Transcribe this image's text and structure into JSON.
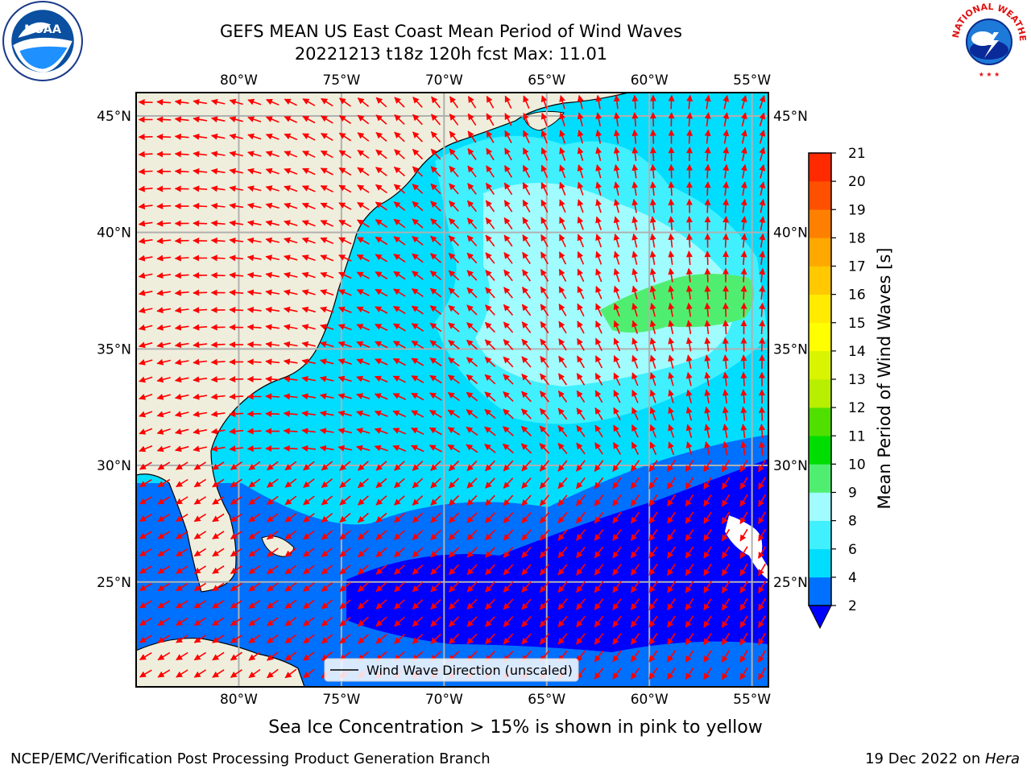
{
  "title_line1": "GEFS MEAN US East Coast Mean Period of Wind Waves",
  "title_line2": "20221213 t18z 120h fcst   Max: 11.01",
  "logos": {
    "left": {
      "icon": "noaa-logo",
      "text": "NOAA"
    },
    "right": {
      "icon": "nws-logo",
      "text": "NATIONAL WEATHER SERVICE"
    }
  },
  "map": {
    "lon_ticks": [
      "80°W",
      "75°W",
      "70°W",
      "65°W",
      "60°W",
      "55°W"
    ],
    "lat_ticks": [
      "45°N",
      "40°N",
      "35°N",
      "30°N",
      "25°N"
    ],
    "lon_values": [
      -80,
      -75,
      -70,
      -65,
      -60,
      -55
    ],
    "lat_values": [
      45,
      40,
      35,
      30,
      25
    ],
    "extent": {
      "lon": [
        -85,
        -54.2
      ],
      "lat": [
        20.5,
        46
      ]
    },
    "legend_label": "Wind Wave Direction (unscaled)",
    "land_color": "#efeedc",
    "arrow_color": "#ff0000",
    "grid": true
  },
  "colorbar": {
    "label": "Mean Period of Wind Waves [s]",
    "ticks": [
      "2",
      "4",
      "6",
      "8",
      "9",
      "10",
      "11",
      "12",
      "13",
      "14",
      "15",
      "16",
      "17",
      "18",
      "19",
      "20",
      "21"
    ],
    "colors": [
      "#0070ff",
      "#00ddff",
      "#40f0ff",
      "#a0fcff",
      "#50ee70",
      "#00dd00",
      "#50e000",
      "#b8ee00",
      "#d8f400",
      "#ffff00",
      "#ffea00",
      "#ffc800",
      "#ffa800",
      "#ff8000",
      "#ff5000",
      "#ff2a00"
    ],
    "extend_color": "#0000ff"
  },
  "sea_ice_note": "Sea Ice Concentration > 15% is shown in pink to yellow",
  "footer": {
    "credit": "NCEP/EMC/Verification Post Processing Product Generation Branch",
    "date": "19 Dec 2022 on ",
    "machine": "Hera"
  }
}
